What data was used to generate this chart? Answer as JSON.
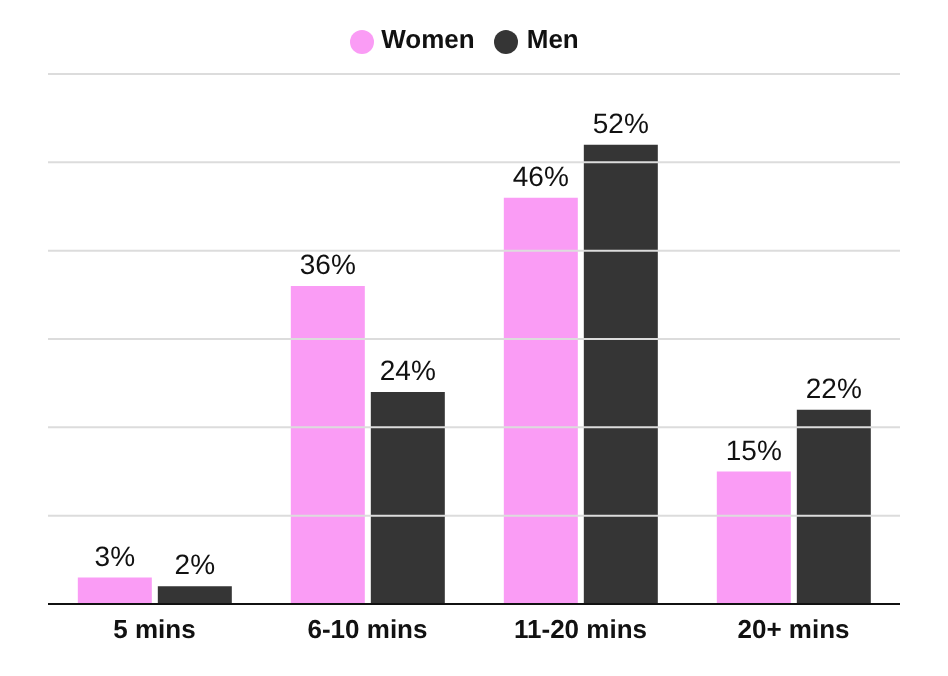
{
  "chart_data": {
    "type": "bar",
    "categories": [
      "5 mins",
      "6-10 mins",
      "11-20 mins",
      "20+ mins"
    ],
    "series": [
      {
        "name": "Women",
        "color": "#fa9cf5",
        "values": [
          3,
          36,
          46,
          15
        ],
        "value_labels": [
          "3%",
          "36%",
          "46%",
          "15%"
        ]
      },
      {
        "name": "Men",
        "color": "#353535",
        "values": [
          2,
          24,
          52,
          22
        ],
        "value_labels": [
          "2%",
          "24%",
          "52%",
          "22%"
        ]
      }
    ],
    "ylim": [
      0,
      60
    ],
    "yticks": [
      {
        "value": 0,
        "label": null
      },
      {
        "value": 10,
        "label": null
      },
      {
        "value": 20,
        "label": null
      },
      {
        "value": 30,
        "label": null
      },
      {
        "value": 40,
        "label": null
      },
      {
        "value": 50,
        "label": null
      },
      {
        "value": 60,
        "label": null
      }
    ],
    "tick_labels": "x",
    "grid": "y",
    "legend": "top"
  }
}
